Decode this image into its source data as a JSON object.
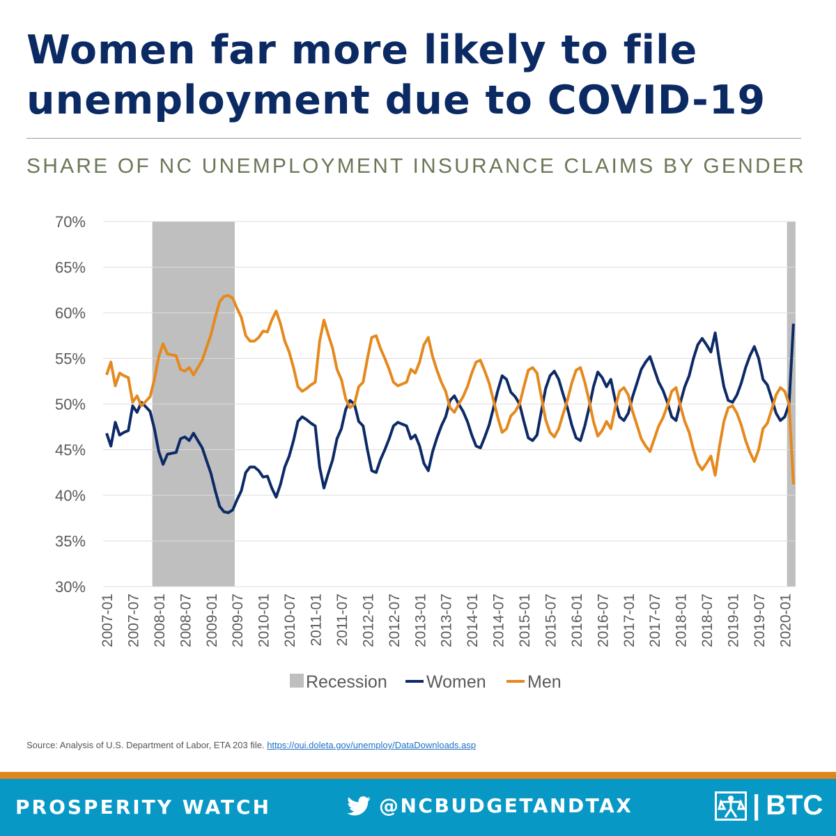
{
  "title": "Women far more likely to file unemployment due to COVID-19",
  "subtitle": "SHARE OF NC UNEMPLOYMENT INSURANCE CLAIMS BY GENDER",
  "source": {
    "text": "Source: Analysis of U.S. Department of Labor, ETA 203 file.",
    "link": "https://oui.doleta.gov/unemploy/DataDownloads.asp"
  },
  "footer": {
    "left": "PROSPERITY WATCH",
    "handle": "@NCBUDGETANDTAX",
    "logo": "BTC",
    "twitter_icon": "twitter-bird-icon"
  },
  "colors": {
    "women": "#0d2a66",
    "men": "#e5891e",
    "recession": "#bfbfbf",
    "footer": "#0898c6",
    "footer_stripe": "#e0861a",
    "title": "#0b2a63"
  },
  "chart_data": {
    "type": "line",
    "title": "SHARE OF NC UNEMPLOYMENT INSURANCE CLAIMS BY GENDER",
    "x_start": "2007-01",
    "x_frequency": "monthly",
    "x_tick_labels": [
      "2007-01",
      "2007-07",
      "2008-01",
      "2008-07",
      "2009-01",
      "2009-07",
      "2010-01",
      "2010-07",
      "2011-01",
      "2011-07",
      "2012-01",
      "2012-07",
      "2013-01",
      "2013-07",
      "2014-01",
      "2014-07",
      "2015-01",
      "2015-07",
      "2016-01",
      "2016-07",
      "2017-01",
      "2017-07",
      "2018-01",
      "2018-07",
      "2019-01",
      "2019-07",
      "2020-01"
    ],
    "y_tick_labels": [
      "30%",
      "35%",
      "40%",
      "45%",
      "50%",
      "55%",
      "60%",
      "65%",
      "70%"
    ],
    "ylim": [
      30,
      70
    ],
    "grid": true,
    "legend": "bottom",
    "legend_entries": [
      "Recession",
      "Women",
      "Men"
    ],
    "recession_periods": [
      [
        "2007-12",
        "2009-06"
      ],
      [
        "2020-02",
        "2020-03"
      ]
    ],
    "series": [
      {
        "name": "Women",
        "values": [
          46.8,
          45.4,
          48.0,
          46.6,
          46.9,
          47.1,
          49.8,
          49.1,
          50.2,
          49.7,
          49.2,
          47.3,
          44.8,
          43.4,
          44.5,
          44.6,
          44.7,
          46.2,
          46.4,
          46.0,
          46.8,
          46.0,
          45.2,
          43.8,
          42.4,
          40.5,
          38.8,
          38.2,
          38.1,
          38.4,
          39.5,
          40.5,
          42.5,
          43.1,
          43.1,
          42.7,
          42.0,
          42.1,
          40.8,
          39.8,
          41.2,
          43.1,
          44.3,
          46.0,
          48.1,
          48.6,
          48.3,
          47.9,
          47.6,
          43.1,
          40.8,
          42.4,
          43.9,
          46.2,
          47.3,
          49.4,
          50.4,
          50.0,
          48.1,
          47.6,
          45.0,
          42.7,
          42.5,
          43.9,
          45.0,
          46.2,
          47.6,
          48.0,
          47.8,
          47.6,
          46.2,
          46.6,
          45.4,
          43.5,
          42.7,
          44.8,
          46.3,
          47.6,
          48.6,
          50.4,
          50.9,
          50.0,
          49.2,
          48.1,
          46.6,
          45.4,
          45.2,
          46.4,
          47.7,
          49.6,
          51.5,
          53.1,
          52.7,
          51.3,
          50.8,
          50.0,
          48.1,
          46.3,
          46.0,
          46.6,
          49.2,
          51.7,
          53.1,
          53.6,
          52.7,
          51.1,
          49.6,
          47.7,
          46.3,
          46.0,
          47.6,
          49.6,
          51.9,
          53.5,
          52.9,
          51.9,
          52.7,
          50.4,
          48.6,
          48.2,
          49.0,
          50.8,
          52.3,
          53.8,
          54.6,
          55.2,
          53.8,
          52.4,
          51.5,
          50.2,
          48.6,
          48.2,
          50.2,
          51.9,
          53.1,
          55.0,
          56.5,
          57.2,
          56.5,
          55.7,
          57.8,
          54.6,
          51.9,
          50.4,
          50.2,
          51.0,
          52.3,
          54.0,
          55.3,
          56.3,
          55.0,
          52.7,
          52.1,
          50.6,
          49.0,
          48.2,
          48.6,
          50.0,
          58.8
        ]
      },
      {
        "name": "Men",
        "values": [
          53.2,
          54.6,
          52.0,
          53.4,
          53.1,
          52.9,
          50.2,
          50.9,
          49.8,
          50.3,
          50.8,
          52.7,
          55.2,
          56.6,
          55.5,
          55.4,
          55.3,
          53.8,
          53.6,
          54.0,
          53.2,
          54.0,
          54.8,
          56.2,
          57.6,
          59.5,
          61.2,
          61.8,
          61.9,
          61.6,
          60.5,
          59.5,
          57.5,
          56.9,
          56.9,
          57.3,
          58.0,
          57.9,
          59.2,
          60.2,
          58.8,
          56.9,
          55.7,
          54.0,
          51.9,
          51.4,
          51.7,
          52.1,
          52.4,
          56.9,
          59.2,
          57.6,
          56.1,
          53.8,
          52.7,
          50.6,
          49.6,
          50.0,
          51.9,
          52.4,
          55.0,
          57.3,
          57.5,
          56.1,
          55.0,
          53.8,
          52.4,
          52.0,
          52.2,
          52.4,
          53.8,
          53.4,
          54.6,
          56.5,
          57.3,
          55.2,
          53.7,
          52.4,
          51.4,
          49.6,
          49.1,
          50.0,
          50.8,
          51.9,
          53.4,
          54.6,
          54.8,
          53.6,
          52.3,
          50.4,
          48.5,
          46.9,
          47.3,
          48.7,
          49.2,
          50.0,
          51.9,
          53.7,
          54.0,
          53.4,
          50.8,
          48.3,
          46.9,
          46.4,
          47.3,
          48.9,
          50.4,
          52.3,
          53.7,
          54.0,
          52.4,
          50.4,
          48.1,
          46.5,
          47.1,
          48.1,
          47.3,
          49.6,
          51.4,
          51.8,
          51.0,
          49.2,
          47.7,
          46.2,
          45.4,
          44.8,
          46.2,
          47.6,
          48.5,
          49.8,
          51.4,
          51.8,
          49.8,
          48.1,
          46.9,
          45.0,
          43.5,
          42.8,
          43.5,
          44.3,
          42.2,
          45.4,
          48.1,
          49.6,
          49.8,
          49.0,
          47.7,
          46.0,
          44.7,
          43.7,
          45.0,
          47.3,
          47.9,
          49.4,
          51.0,
          51.8,
          51.4,
          50.0,
          41.2
        ]
      }
    ]
  }
}
